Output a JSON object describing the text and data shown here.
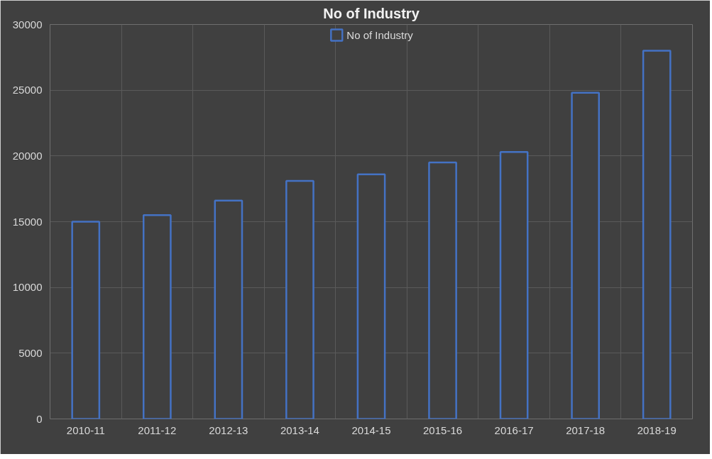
{
  "chart_data": {
    "type": "bar",
    "title": "No of Industry",
    "categories": [
      "2010-11",
      "2011-12",
      "2012-13",
      "2013-14",
      "2014-15",
      "2015-16",
      "2016-17",
      "2017-18",
      "2018-19"
    ],
    "series": [
      {
        "name": "No of Industry",
        "color": "#4472c4",
        "values": [
          15000,
          15500,
          16600,
          18100,
          18600,
          19500,
          20300,
          24800,
          28000
        ]
      }
    ],
    "ylim": [
      0,
      30000
    ],
    "yticks": [
      0,
      5000,
      10000,
      15000,
      20000,
      25000,
      30000
    ],
    "grid": true,
    "legend": "top"
  }
}
